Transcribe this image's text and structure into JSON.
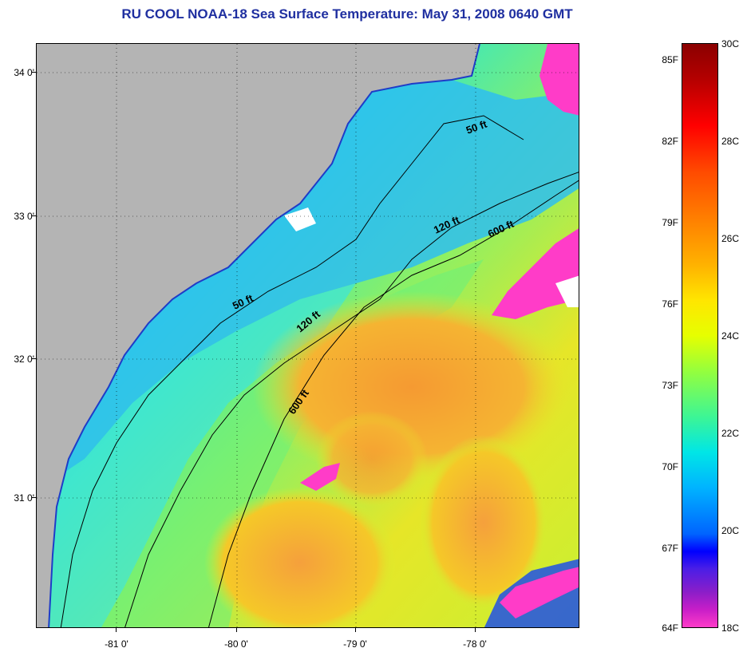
{
  "title": "RU COOL  NOAA-18  Sea Surface Temperature:  May 31, 2008 0640 GMT",
  "colors": {
    "title": "#1f2fa0",
    "land": "#b4b4b4",
    "ocean_cool": "#2ec8f0",
    "ocean_mid": "#3cf5a0",
    "ocean_warm": "#f0c814",
    "ocean_hot": "#f5a03c",
    "cloud": "#ff3cb4",
    "contour": "#000000"
  },
  "map": {
    "latitude_labels": [
      "34 0'",
      "33 0'",
      "32 0'",
      "31 0'"
    ],
    "longitude_labels": [
      "-81 0'",
      "-80 0'",
      "-79 0'",
      "-78 0'"
    ],
    "contour_labels": [
      "50 ft",
      "120 ft",
      "600 ft",
      "50 ft",
      "120 ft",
      "600 ft"
    ]
  },
  "colorbar": {
    "fahrenheit": [
      "85F",
      "82F",
      "79F",
      "76F",
      "73F",
      "70F",
      "67F",
      "64F"
    ],
    "celsius": [
      "30C",
      "28C",
      "26C",
      "24C",
      "22C",
      "20C",
      "18C"
    ]
  }
}
